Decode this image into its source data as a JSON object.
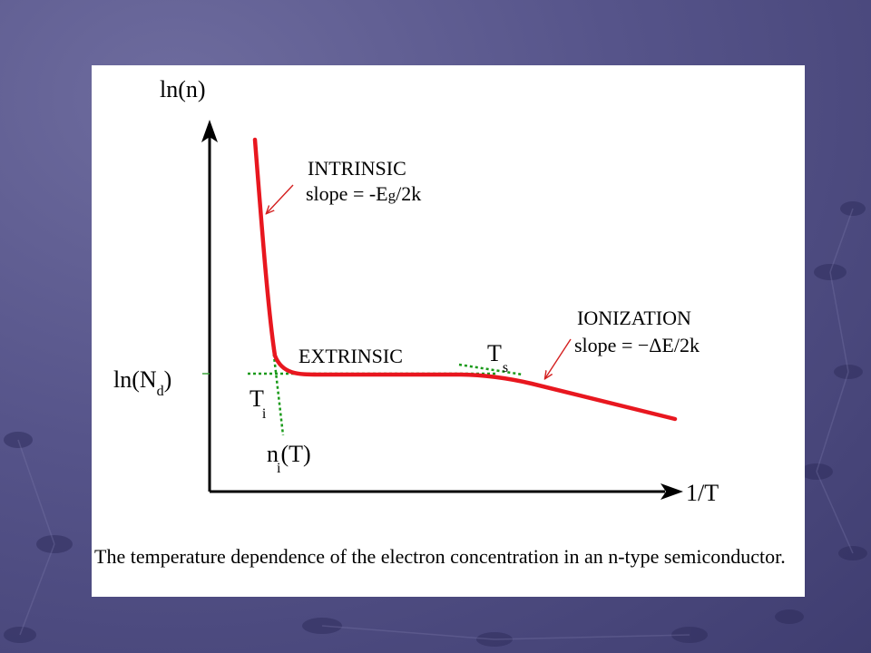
{
  "theme": {
    "slide_background": "#5a588c",
    "panel_background": "#ffffff",
    "curve_color": "#e8171f",
    "tangent_color": "#1a9a1a",
    "arrow_color": "#d42020",
    "axis_color": "#000000"
  },
  "diagram": {
    "y_axis_label": "ln(n)",
    "x_axis_label": "1/T",
    "nd_label_main": "ln(N",
    "nd_label_sub": "d",
    "nd_label_close": ")",
    "regions": {
      "intrinsic_title": "INTRINSIC",
      "intrinsic_slope_prefix": "slope = -E",
      "intrinsic_slope_sub": "g",
      "intrinsic_slope_suffix": "/2k",
      "extrinsic_title": "EXTRINSIC",
      "ionization_title": "IONIZATION",
      "ionization_slope": "slope = −ΔE/2k"
    },
    "points": {
      "ti_main": "T",
      "ti_sub": "i",
      "ts_main": "T",
      "ts_sub": "s",
      "ni_main": "n",
      "ni_sub": "i",
      "ni_suffix": "(T)"
    }
  },
  "caption": "The temperature dependence of the electron concentration in an n-type semiconductor."
}
